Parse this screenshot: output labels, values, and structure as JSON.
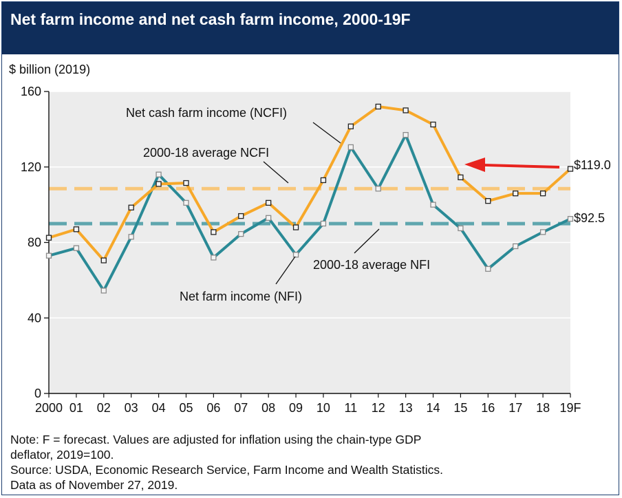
{
  "chart_data": {
    "type": "line",
    "title": "Net farm income and net cash farm income, 2000-19F",
    "ylabel": "$ billion (2019)",
    "xlabel": "",
    "ylim": [
      0,
      160
    ],
    "yticks": [
      0,
      40,
      80,
      120,
      160
    ],
    "categories": [
      "2000",
      "01",
      "02",
      "03",
      "04",
      "05",
      "06",
      "07",
      "08",
      "09",
      "10",
      "11",
      "12",
      "13",
      "14",
      "15",
      "16",
      "17",
      "18",
      "19F"
    ],
    "series": [
      {
        "name": "Net cash farm income (NCFI)",
        "color": "#f7a829",
        "values": [
          82.5,
          87,
          70.5,
          98.5,
          111,
          111.5,
          85.5,
          94,
          101,
          88,
          113,
          141.5,
          152,
          150,
          142.5,
          114.5,
          102,
          106,
          106,
          119.0
        ]
      },
      {
        "name": "Net farm income (NFI)",
        "color": "#2a8a96",
        "values": [
          73,
          77,
          54.5,
          83,
          116,
          101,
          72,
          84.5,
          93,
          73.5,
          90,
          130.5,
          108.5,
          137,
          100,
          87.5,
          66,
          78,
          85.5,
          92.5
        ]
      }
    ],
    "averages": [
      {
        "name": "2000-18 average NCFI",
        "value": 108.5,
        "color": "#f8c77a"
      },
      {
        "name": "2000-18 average NFI",
        "value": 90,
        "color": "#5fa6ae"
      }
    ],
    "end_labels": [
      "$119.0",
      "$92.5"
    ],
    "grid": true,
    "arrow_color": "#e8231e"
  },
  "notes": {
    "line1": "Note: F = forecast. Values are adjusted for inflation using the chain-type GDP",
    "line2": "deflator, 2019=100.",
    "line3": "Source: USDA, Economic Research Service, Farm Income and Wealth Statistics.",
    "line4": "Data as of November 27, 2019."
  }
}
